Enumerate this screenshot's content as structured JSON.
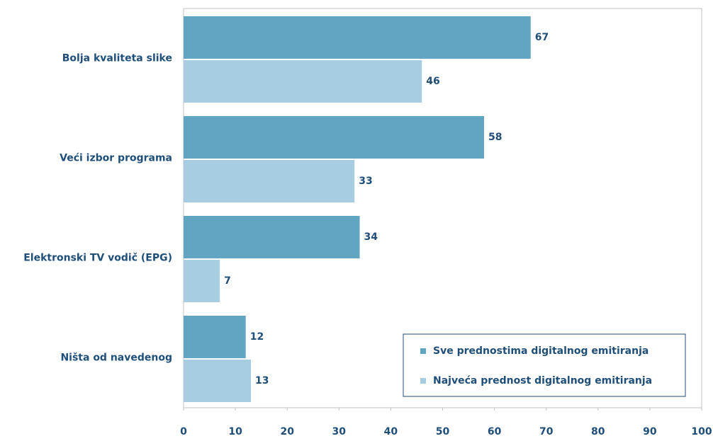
{
  "chart_data": {
    "type": "barh",
    "categories": [
      "Bolja kvaliteta slike",
      "Veći izbor programa",
      "Elektronski TV vodič (EPG)",
      "Ništa od navedenog"
    ],
    "series": [
      {
        "name": "Sve prednostima digitalnog emitiranja",
        "color": "#62a5c3",
        "values": [
          67,
          58,
          34,
          12
        ]
      },
      {
        "name": "Najveća prednost digitalnog emitiranja",
        "color": "#a9cde0",
        "values": [
          46,
          33,
          7,
          13
        ]
      }
    ],
    "xlim": [
      0,
      100
    ],
    "xticks": [
      0,
      10,
      20,
      30,
      40,
      50,
      60,
      70,
      80,
      90,
      100
    ],
    "legend": "lower right"
  }
}
